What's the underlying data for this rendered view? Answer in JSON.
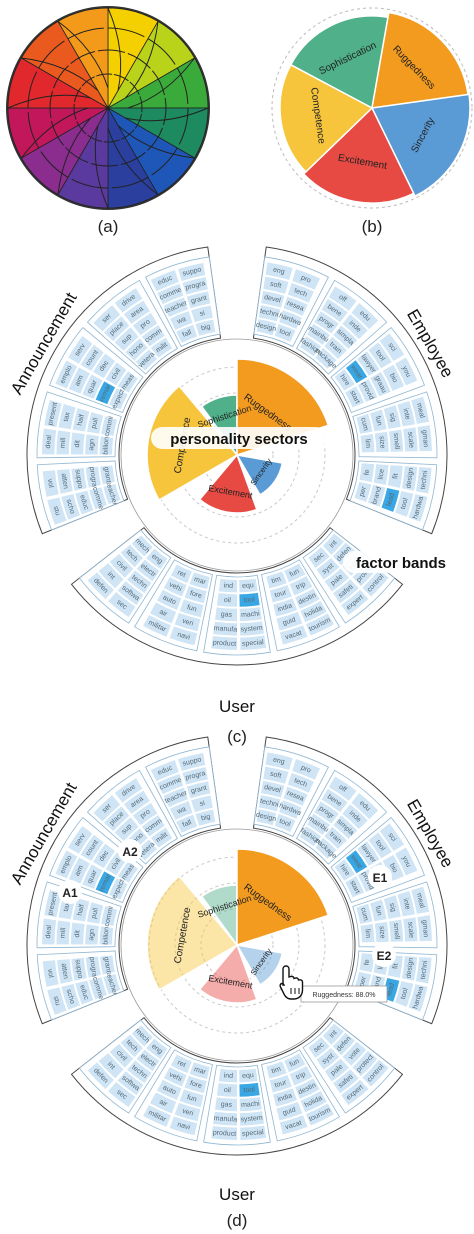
{
  "captions": {
    "a": "(a)",
    "b": "(b)",
    "c": "(c)",
    "d": "(d)"
  },
  "sectors": [
    "Sophistication",
    "Ruggedness",
    "Sincerity",
    "Excitement",
    "Competence"
  ],
  "groups": {
    "left": "Announcement",
    "right": "Employee",
    "bottom": "User"
  },
  "callouts": {
    "personality": "personality sectors",
    "factor": "factor bands"
  },
  "region_labels": [
    "A1",
    "A2",
    "E1",
    "E2"
  ],
  "tooltip": "Ruggedness: 88.0%",
  "colors": {
    "sophistication": "#4fb08a",
    "ruggedness": "#f29b1f",
    "sincerity": "#5a9bd5",
    "excitement": "#e64a43",
    "competence": "#f6c53c",
    "band": "#cfe5f5",
    "band_highlight": "#39a7e4"
  },
  "words": {
    "announcement": [
      "teacher",
      "grant",
      "comme",
      "progra",
      "educ",
      "suppo",
      "scho",
      "atten",
      "stu",
      "vol",
      "billion",
      "commi",
      "agn",
      "pull",
      "dit",
      "half",
      "mill",
      "tax",
      "deal",
      "present",
      "expect",
      "meas",
      "remar",
      "civil",
      "quar",
      "dec",
      "aim",
      "count",
      "emplo",
      "serv",
      "vetera",
      "milit",
      "hono",
      "comm",
      "sup",
      "pro",
      "place",
      "area",
      "ser",
      "drive",
      "fall",
      "big",
      "wa",
      "si"
    ],
    "employee": [
      "design",
      "tool",
      "techni",
      "hardwa",
      "devel",
      "resea",
      "soft",
      "tech",
      "eng",
      "pro",
      "fashion",
      "package",
      "mainbu",
      "train",
      "progr",
      "simpla",
      "bene",
      "inde",
      "off",
      "edu",
      "hire",
      "start",
      "wear",
      "provid",
      "lawyer",
      "graau",
      "tool",
      "bio",
      "sci",
      "you",
      "cum",
      "lim",
      "fun",
      "size",
      "sig",
      "smell",
      "inte",
      "scale",
      "meal",
      "gman",
      "fe",
      "per",
      "lice",
      "brand",
      "fit",
      "lead"
    ],
    "user": [
      "int",
      "sec",
      "defen",
      "syst",
      "vote",
      "pale",
      "protect",
      "safeti",
      "control",
      "expert",
      "fun",
      "tim",
      "trip",
      "tour",
      "destin",
      "india",
      "holida",
      "guid",
      "tourism",
      "vacat",
      "equ",
      "ind",
      "tool",
      "oil",
      "machi",
      "gas",
      "system",
      "manufa",
      "special",
      "product",
      "mar",
      "ret",
      "fore",
      "vehi",
      "fun",
      "auto",
      "veri",
      "air",
      "navi",
      "militar",
      "eng",
      "mech",
      "electr",
      "tech",
      "techn",
      "civil",
      "softwa"
    ]
  }
}
